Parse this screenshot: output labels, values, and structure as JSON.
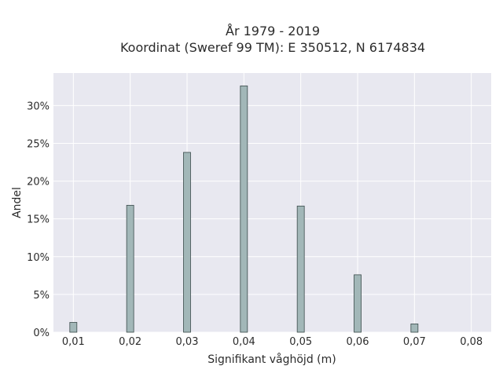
{
  "chart_data": {
    "type": "bar",
    "title_line1": "År 1979 - 2019",
    "title_line2": "Koordinat (Sweref 99 TM): E 350512, N 6174834",
    "xlabel": "Signifikant våghöjd (m)",
    "ylabel": "Andel",
    "x": [
      0.01,
      0.02,
      0.03,
      0.04,
      0.05,
      0.06,
      0.07
    ],
    "values": [
      1.3,
      16.8,
      23.8,
      32.6,
      16.7,
      7.6,
      1.1
    ],
    "x_ticks": [
      "0,01",
      "0,02",
      "0,03",
      "0,04",
      "0,05",
      "0,06",
      "0,07",
      "0,08"
    ],
    "x_tick_values": [
      0.01,
      0.02,
      0.03,
      0.04,
      0.05,
      0.06,
      0.07,
      0.08
    ],
    "y_ticks": [
      "0%",
      "5%",
      "10%",
      "15%",
      "20%",
      "25%",
      "30%"
    ],
    "y_tick_values": [
      0,
      5,
      10,
      15,
      20,
      25,
      30
    ],
    "xlim": [
      0.0065,
      0.0835
    ],
    "ylim": [
      0,
      34.3
    ],
    "grid": true,
    "colors": {
      "plot_bg": "#e8e8f0",
      "grid": "#ffffff",
      "bar_fill": "#a2b7b8",
      "bar_stroke": "#3a4a4a"
    }
  }
}
